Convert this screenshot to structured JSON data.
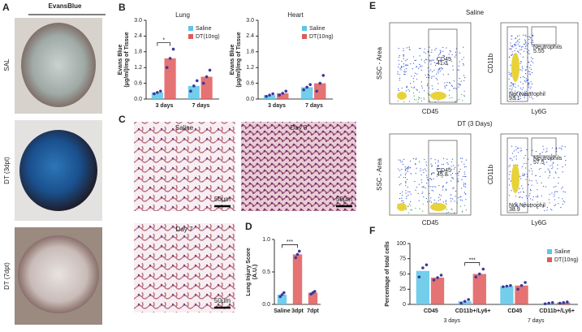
{
  "chart_data": [
    {
      "type": "bar",
      "title": "Lung",
      "y_label": [
        "Evans Blue",
        "(μg/ml)/mg of Tissue"
      ],
      "categories": [
        "3 days",
        "7 days"
      ],
      "series": [
        {
          "name": "Saline",
          "color": "#5bc6e8",
          "values": [
            0.25,
            0.5
          ],
          "points": [
            [
              0.2,
              0.25,
              0.3
            ],
            [
              0.3,
              0.5,
              0.7
            ]
          ]
        },
        {
          "name": "DT(10ng)",
          "color": "#e05a5a",
          "values": [
            1.55,
            0.85
          ],
          "points": [
            [
              1.2,
              1.55,
              1.9
            ],
            [
              0.6,
              0.85,
              1.1
            ]
          ]
        }
      ],
      "ylim": [
        0,
        3.0
      ],
      "yticks": [
        {
          "value": 0,
          "label": "0.0"
        },
        0.6,
        1.2,
        1.8,
        2.4,
        {
          "value": 3,
          "label": "3.0"
        }
      ],
      "annotations": [
        "*"
      ],
      "legend": "upper right"
    },
    {
      "type": "bar",
      "title": "Heart",
      "y_label": [
        "Evans Blue",
        "(μg/ml)/mg of Tissue"
      ],
      "categories": [
        "3 days",
        "7 days"
      ],
      "series": [
        {
          "name": "Saline",
          "color": "#5bc6e8",
          "values": [
            0.15,
            0.45
          ],
          "points": [
            [
              0.1,
              0.15,
              0.2
            ],
            [
              0.35,
              0.45,
              0.55
            ]
          ]
        },
        {
          "name": "DT(10ng)",
          "color": "#e05a5a",
          "values": [
            0.22,
            0.6
          ],
          "points": [
            [
              0.15,
              0.22,
              0.3
            ],
            [
              0.3,
              0.6,
              0.9
            ]
          ]
        }
      ],
      "ylim": [
        0,
        3.0
      ],
      "yticks": [
        {
          "value": 0,
          "label": "0.0"
        },
        0.6,
        1.2,
        1.8,
        2.4,
        {
          "value": 3,
          "label": "3.0"
        }
      ],
      "annotations": [],
      "legend": "upper right"
    },
    {
      "type": "bar",
      "y_label": [
        "Lung Injury Score",
        "(A.U.)"
      ],
      "categories": [
        "Saline",
        "3dpt",
        "7dpt"
      ],
      "values": [
        0.15,
        0.77,
        0.18
      ],
      "colors": [
        "#5bc6e8",
        "#e05a5a",
        "#e05a5a"
      ],
      "points": [
        [
          0.12,
          0.15,
          0.18
        ],
        [
          0.72,
          0.77,
          0.82
        ],
        [
          0.16,
          0.18,
          0.2
        ]
      ],
      "ylim": [
        0,
        1.0
      ],
      "yticks": [
        {
          "value": 0,
          "label": "0.0"
        },
        {
          "value": 0.5,
          "label": "0.5"
        },
        {
          "value": 1,
          "label": "1.0"
        }
      ],
      "annotations": [
        "***"
      ]
    },
    {
      "type": "bar",
      "y_label": [
        "Percentage of total cells"
      ],
      "categories": [
        "CD45",
        "CD11b+/Ly6+",
        "CD45",
        "CD11b+/Ly6+"
      ],
      "groups": [
        "3 days",
        "7 days"
      ],
      "series": [
        {
          "name": "Saline",
          "color": "#5bc6e8",
          "values": [
            55,
            5,
            30,
            2
          ],
          "points": [
            [
              45,
              60,
              65
            ],
            [
              2,
              5,
              8
            ],
            [
              29,
              30,
              31
            ],
            [
              1,
              2,
              3
            ]
          ]
        },
        {
          "name": "DT(10ng)",
          "color": "#e05a5a",
          "values": [
            44,
            50,
            31,
            3
          ],
          "points": [
            [
              40,
              44,
              48
            ],
            [
              45,
              50,
              58
            ],
            [
              25,
              31,
              36
            ],
            [
              2,
              3,
              4
            ]
          ]
        }
      ],
      "ylim": [
        0,
        100
      ],
      "yticks": [
        0,
        25,
        50,
        75,
        100
      ],
      "annotations": [
        "***"
      ],
      "legend": "upper right"
    }
  ],
  "panel_letters": [
    "A",
    "B",
    "C",
    "D",
    "E",
    "F"
  ],
  "panel_a": {
    "header": "EvansBlue",
    "rows": [
      "SAL",
      "DT (3dpt)",
      "DT (7dpt)"
    ]
  },
  "panel_c": {
    "labels": [
      "Saline",
      "Day 3",
      "Day 7"
    ],
    "scale": "50µm"
  },
  "panel_e": {
    "groups": [
      "Saline",
      "DT (3 Days)"
    ],
    "x_left": "CD45",
    "y_left": "SSC - Area",
    "x_right": "Ly6G",
    "y_right": "CD11b",
    "gates": [
      {
        "cd45": "CD45\n41.3",
        "neut": "Neutrophils\n5.55",
        "not": "Not Neutrophil\n93.1"
      },
      {
        "cd45": "CD45\n45.8",
        "neut": "Neutrophils\n57.5",
        "not": "Not Neutrophil\n38.9"
      }
    ]
  }
}
